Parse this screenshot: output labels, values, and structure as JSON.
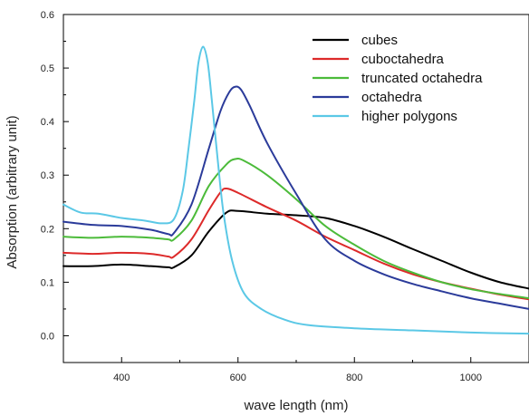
{
  "chart_data": {
    "type": "line",
    "title": "",
    "xlabel": "wave length (nm)",
    "ylabel": "Absorption (arbitrary unit)",
    "xlim": [
      300,
      1100
    ],
    "ylim": [
      -0.05,
      0.6
    ],
    "x_ticks": [
      400,
      600,
      800,
      1000
    ],
    "y_ticks": [
      0.0,
      0.1,
      0.2,
      0.3,
      0.4,
      0.5,
      0.6
    ],
    "x_tick_labels": [
      "400",
      "600",
      "800",
      "1000"
    ],
    "y_tick_labels": [
      "0.0",
      "0.1",
      "0.2",
      "0.3",
      "0.4",
      "0.5",
      "0.6"
    ],
    "grid": false,
    "legend_position": "top-right",
    "series": [
      {
        "name": "cubes",
        "color": "#000000",
        "x": [
          300,
          350,
          400,
          450,
          480,
          490,
          520,
          550,
          580,
          600,
          650,
          700,
          750,
          800,
          850,
          900,
          950,
          1000,
          1050,
          1100
        ],
        "y": [
          0.13,
          0.13,
          0.133,
          0.13,
          0.128,
          0.128,
          0.15,
          0.195,
          0.23,
          0.233,
          0.228,
          0.225,
          0.22,
          0.205,
          0.185,
          0.162,
          0.14,
          0.118,
          0.1,
          0.088
        ]
      },
      {
        "name": "cuboctahedra",
        "color": "#dd2a2a",
        "x": [
          300,
          350,
          400,
          450,
          480,
          490,
          520,
          550,
          570,
          580,
          600,
          650,
          700,
          750,
          800,
          850,
          900,
          950,
          1000,
          1050,
          1100
        ],
        "y": [
          0.155,
          0.153,
          0.155,
          0.153,
          0.148,
          0.148,
          0.18,
          0.235,
          0.268,
          0.275,
          0.267,
          0.24,
          0.215,
          0.185,
          0.16,
          0.135,
          0.115,
          0.1,
          0.088,
          0.077,
          0.068
        ]
      },
      {
        "name": "truncated octahedra",
        "color": "#4cbb3a",
        "x": [
          300,
          350,
          400,
          450,
          480,
          490,
          520,
          550,
          580,
          595,
          610,
          650,
          700,
          750,
          800,
          850,
          900,
          950,
          1000,
          1050,
          1100
        ],
        "y": [
          0.185,
          0.183,
          0.185,
          0.183,
          0.18,
          0.18,
          0.215,
          0.28,
          0.32,
          0.33,
          0.327,
          0.3,
          0.255,
          0.205,
          0.17,
          0.14,
          0.118,
          0.1,
          0.087,
          0.078,
          0.07
        ]
      },
      {
        "name": "octahedra",
        "color": "#2b3b9a",
        "x": [
          300,
          350,
          400,
          450,
          480,
          490,
          520,
          550,
          570,
          585,
          595,
          605,
          620,
          650,
          700,
          750,
          800,
          850,
          900,
          950,
          1000,
          1050,
          1100
        ],
        "y": [
          0.213,
          0.207,
          0.205,
          0.198,
          0.19,
          0.192,
          0.245,
          0.35,
          0.42,
          0.455,
          0.465,
          0.46,
          0.43,
          0.36,
          0.265,
          0.18,
          0.14,
          0.115,
          0.097,
          0.083,
          0.07,
          0.06,
          0.05
        ]
      },
      {
        "name": "higher polygons",
        "color": "#5bc8e6",
        "x": [
          300,
          330,
          360,
          400,
          440,
          470,
          490,
          505,
          515,
          525,
          532,
          540,
          548,
          555,
          565,
          575,
          590,
          610,
          640,
          680,
          720,
          800,
          900,
          1000,
          1100
        ],
        "y": [
          0.245,
          0.23,
          0.228,
          0.22,
          0.215,
          0.21,
          0.218,
          0.27,
          0.35,
          0.44,
          0.51,
          0.54,
          0.51,
          0.44,
          0.33,
          0.23,
          0.14,
          0.08,
          0.05,
          0.03,
          0.02,
          0.014,
          0.01,
          0.006,
          0.004
        ]
      }
    ]
  }
}
